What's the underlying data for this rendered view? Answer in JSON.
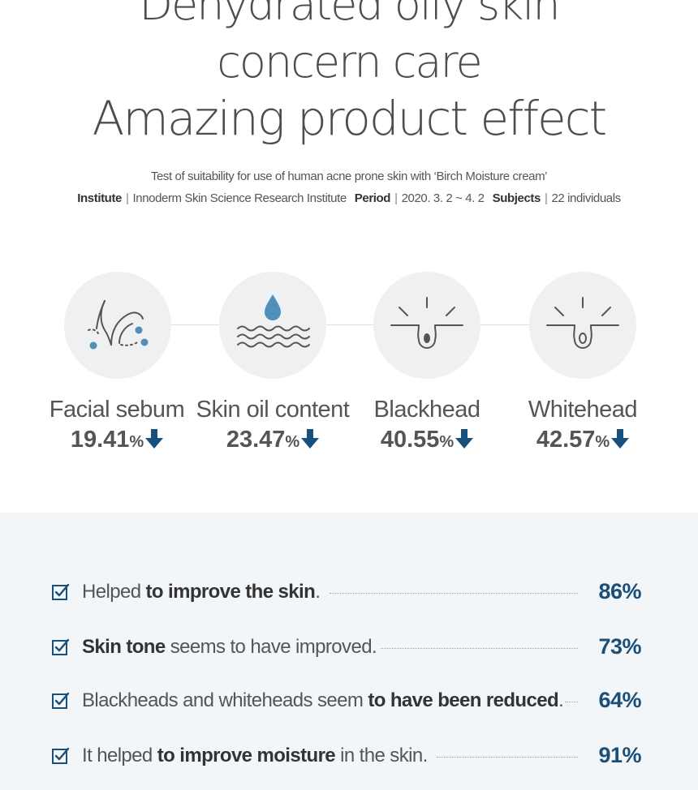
{
  "headline": {
    "line1": "Dehydrated oily skin",
    "line2": "concern care",
    "line3": "Amazing product effect"
  },
  "test": {
    "description": "Test of suitability for use of human acne prone skin with ‘Birch Moisture cream’",
    "institute_label": "Institute",
    "institute_value": "Innoderm Skin Science Research Institute",
    "period_label": "Period",
    "period_value": "2020. 3. 2 ~ 4. 2",
    "subjects_label": "Subjects",
    "subjects_value": "22 individuals",
    "separator": "|"
  },
  "stats": [
    {
      "label": "Facial sebum",
      "value": "19.41",
      "unit": "%",
      "icon": "hair-follicle-icon",
      "trend": "down"
    },
    {
      "label": "Skin oil content",
      "value": "23.47",
      "unit": "%",
      "icon": "water-drop-icon",
      "trend": "down"
    },
    {
      "label": "Blackhead",
      "value": "40.55",
      "unit": "%",
      "icon": "pore-blackhead-icon",
      "trend": "down"
    },
    {
      "label": "Whitehead",
      "value": "42.57",
      "unit": "%",
      "icon": "pore-whitehead-icon",
      "trend": "down"
    }
  ],
  "survey": [
    {
      "pre": "Helped ",
      "bold": "to improve the skin",
      "post": ".",
      "value": "86%"
    },
    {
      "pre": "",
      "bold": "Skin tone",
      "post": " seems to have improved.",
      "value": "73%"
    },
    {
      "pre": "Blackheads and whiteheads seem ",
      "bold": "to have been reduced",
      "post": ".",
      "value": "64%"
    },
    {
      "pre": "It helped ",
      "bold": "to improve moisture",
      "post": " in the skin.",
      "value": "91%"
    }
  ],
  "colors": {
    "accent": "#1b4f78",
    "arrow": "#15507e",
    "drop": "#4f8fba",
    "circle_bg": "#eef0f2",
    "survey_bg": "#f2f6f9"
  }
}
